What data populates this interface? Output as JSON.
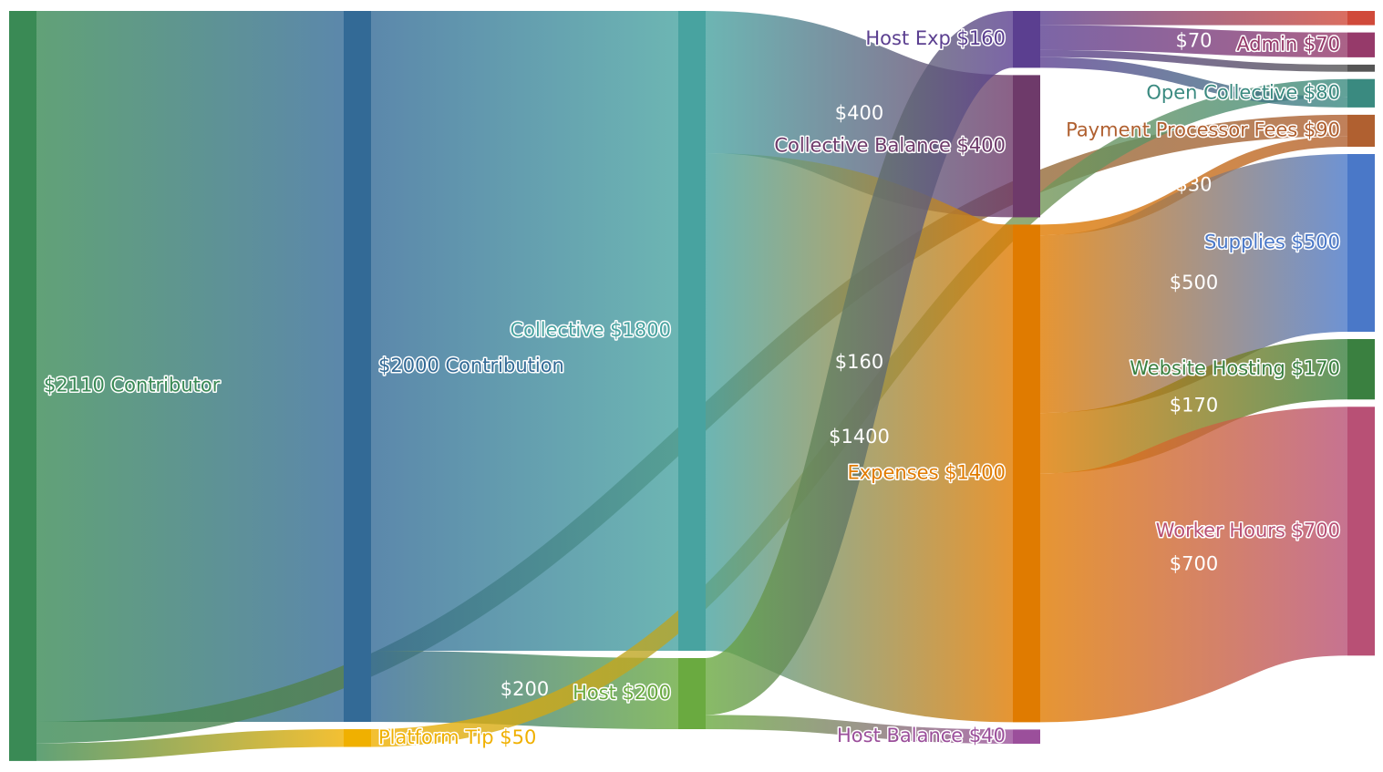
{
  "chart_data": {
    "type": "sankey",
    "nodes": [
      {
        "label": "$2110 Contributor",
        "color": "#3a8a55"
      },
      {
        "label": "$2000 Contribution",
        "color": "#336a96"
      },
      {
        "label": "Platform Tip $50",
        "color": "#f0b000"
      },
      {
        "label": "Collective $1800",
        "color": "#48a3a0"
      },
      {
        "label": "Host $200",
        "color": "#6aaa40"
      },
      {
        "label": "Host Exp $160",
        "color": "#5b3f90"
      },
      {
        "label": "Collective Balance $400",
        "color": "#6e3a6a"
      },
      {
        "label": "Expenses $1400",
        "color": "#e07b00"
      },
      {
        "label": "Host Balance $40",
        "color": "#9b4f9b"
      },
      {
        "label": null,
        "color": "#d04a3a"
      },
      {
        "label": "Admin $70",
        "color": "#963a6a"
      },
      {
        "label": null,
        "color": "#555555"
      },
      {
        "label": "Open Collective $80",
        "color": "#3a8a80"
      },
      {
        "label": "Payment Processor Fees $90",
        "color": "#b06030"
      },
      {
        "label": "Supplies $500",
        "color": "#4a78c8"
      },
      {
        "label": "Website Hosting $170",
        "color": "#3a8040"
      },
      {
        "label": "Worker Hours $700",
        "color": "#b85075"
      }
    ],
    "links": [
      {
        "source": 0,
        "target": 1,
        "value": 2000
      },
      {
        "source": 0,
        "target": 13,
        "value": 60
      },
      {
        "source": 0,
        "target": 2,
        "value": 50
      },
      {
        "source": 1,
        "target": 3,
        "value": 1800
      },
      {
        "source": 1,
        "target": 4,
        "value": 200,
        "label": "$200"
      },
      {
        "source": 2,
        "target": 12,
        "value": 50
      },
      {
        "source": 3,
        "target": 6,
        "value": 400,
        "label": "$400"
      },
      {
        "source": 3,
        "target": 7,
        "value": 1400,
        "label": "$1400"
      },
      {
        "source": 4,
        "target": 5,
        "value": 160,
        "label": "$160"
      },
      {
        "source": 4,
        "target": 8,
        "value": 40
      },
      {
        "source": 5,
        "target": 9,
        "value": 40
      },
      {
        "source": 5,
        "target": 10,
        "value": 70,
        "label": "$70"
      },
      {
        "source": 5,
        "target": 11,
        "value": 20
      },
      {
        "source": 5,
        "target": 12,
        "value": 30
      },
      {
        "source": 7,
        "target": 13,
        "value": 30,
        "label": "$30"
      },
      {
        "source": 7,
        "target": 14,
        "value": 500,
        "label": "$500"
      },
      {
        "source": 7,
        "target": 15,
        "value": 170,
        "label": "$170"
      },
      {
        "source": 7,
        "target": 16,
        "value": 700,
        "label": "$700"
      }
    ]
  }
}
